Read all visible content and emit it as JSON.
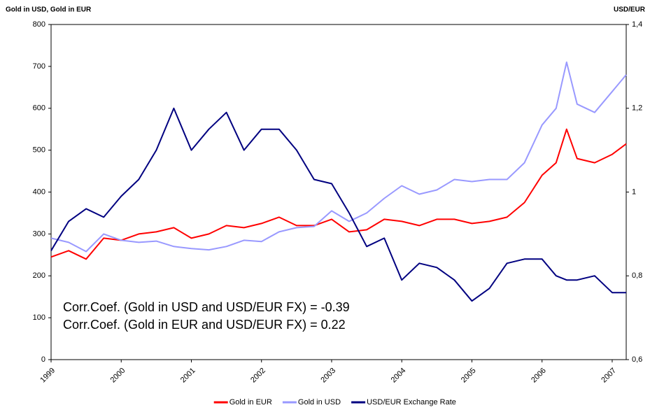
{
  "chart_data": {
    "type": "line",
    "y_axis_title": "Gold in USD, Gold in EUR",
    "y2_axis_title": "USD/EUR",
    "annotations": [
      "Corr.Coef. (Gold in USD and USD/EUR FX) = -0.39",
      "Corr.Coef. (Gold in EUR and USD/EUR FX) = 0.22"
    ],
    "x": [
      1999.0,
      1999.25,
      1999.5,
      1999.75,
      2000.0,
      2000.25,
      2000.5,
      2000.75,
      2001.0,
      2001.25,
      2001.5,
      2001.75,
      2002.0,
      2002.25,
      2002.5,
      2002.75,
      2003.0,
      2003.25,
      2003.5,
      2003.75,
      2004.0,
      2004.25,
      2004.5,
      2004.75,
      2005.0,
      2005.25,
      2005.5,
      2005.75,
      2006.0,
      2006.2,
      2006.35,
      2006.5,
      2006.75,
      2007.0,
      2007.2
    ],
    "xlim": [
      1999,
      2007.2
    ],
    "xticks": [
      1999,
      2000,
      2001,
      2002,
      2003,
      2004,
      2005,
      2006,
      2007
    ],
    "ylim": [
      0,
      800
    ],
    "yticks": [
      0,
      100,
      200,
      300,
      400,
      500,
      600,
      700,
      800
    ],
    "y2lim": [
      0.6,
      1.4
    ],
    "y2ticks": [
      {
        "value": 0.6,
        "label": "0,6"
      },
      {
        "value": 0.8,
        "label": "0,8"
      },
      {
        "value": 1,
        "label": "1"
      },
      {
        "value": 1.2,
        "label": "1,2"
      },
      {
        "value": 1.4,
        "label": "1,4"
      }
    ],
    "grid": false,
    "legend": "bottom",
    "series": [
      {
        "name": "Gold in EUR",
        "color": "#ff0000",
        "values": [
          245,
          260,
          240,
          290,
          285,
          300,
          305,
          315,
          290,
          300,
          320,
          315,
          325,
          340,
          320,
          320,
          335,
          305,
          310,
          335,
          330,
          320,
          335,
          335,
          325,
          330,
          340,
          375,
          440,
          470,
          550,
          480,
          470,
          490,
          515
        ]
      },
      {
        "name": "Gold in USD",
        "color": "#9999ff",
        "values": [
          290,
          280,
          258,
          300,
          285,
          280,
          283,
          270,
          265,
          262,
          270,
          285,
          282,
          305,
          315,
          318,
          355,
          330,
          350,
          385,
          415,
          395,
          405,
          430,
          425,
          430,
          430,
          470,
          560,
          600,
          710,
          610,
          590,
          640,
          680
        ]
      },
      {
        "name": "USD/EUR Exchange Rate",
        "color": "#000080",
        "axis": "y2",
        "values": [
          0.86,
          0.93,
          0.96,
          0.94,
          0.99,
          1.03,
          1.1,
          1.2,
          1.1,
          1.15,
          1.19,
          1.1,
          1.15,
          1.15,
          1.1,
          1.03,
          1.02,
          0.95,
          0.87,
          0.89,
          0.79,
          0.83,
          0.82,
          0.79,
          0.74,
          0.77,
          0.83,
          0.84,
          0.84,
          0.8,
          0.79,
          0.79,
          0.8,
          0.76,
          0.76
        ]
      }
    ]
  }
}
